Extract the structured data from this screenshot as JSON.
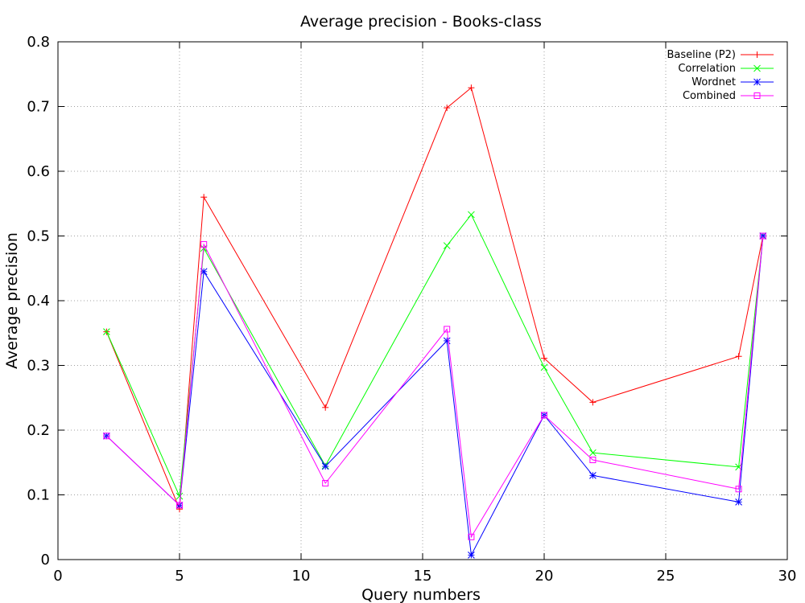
{
  "chart_data": {
    "type": "line",
    "title": "Average precision - Books-class",
    "xlabel": "Query numbers",
    "ylabel": "Average precision",
    "xlim": [
      0,
      30
    ],
    "ylim": [
      0,
      0.8
    ],
    "xticks": [
      0,
      5,
      10,
      15,
      20,
      25,
      30
    ],
    "yticks": [
      0,
      0.1,
      0.2,
      0.3,
      0.4,
      0.5,
      0.6,
      0.7,
      0.8
    ],
    "xtick_labels": [
      "0",
      "5",
      "10",
      "15",
      "20",
      "25",
      "30"
    ],
    "ytick_labels": [
      "0",
      "0.1",
      "0.2",
      "0.3",
      "0.4",
      "0.5",
      "0.6",
      "0.7",
      "0.8"
    ],
    "grid": true,
    "legend_position": "top-right",
    "x": [
      2,
      5,
      6,
      11,
      16,
      17,
      20,
      22,
      28,
      29
    ],
    "series": [
      {
        "name": "Baseline (P2)",
        "color": "#ff0000",
        "marker": "plus",
        "values": [
          0.352,
          0.078,
          0.56,
          0.235,
          0.698,
          0.729,
          0.311,
          0.243,
          0.314,
          0.5
        ]
      },
      {
        "name": "Correlation",
        "color": "#00ff00",
        "marker": "x",
        "values": [
          0.352,
          0.098,
          0.481,
          0.145,
          0.485,
          0.533,
          0.297,
          0.165,
          0.143,
          0.5
        ]
      },
      {
        "name": "Wordnet",
        "color": "#0000ff",
        "marker": "star",
        "values": [
          0.191,
          0.084,
          0.445,
          0.144,
          0.338,
          0.007,
          0.223,
          0.13,
          0.089,
          0.5
        ]
      },
      {
        "name": "Combined",
        "color": "#ff00ff",
        "marker": "square",
        "values": [
          0.191,
          0.084,
          0.487,
          0.118,
          0.356,
          0.035,
          0.223,
          0.154,
          0.109,
          0.5
        ]
      }
    ]
  }
}
